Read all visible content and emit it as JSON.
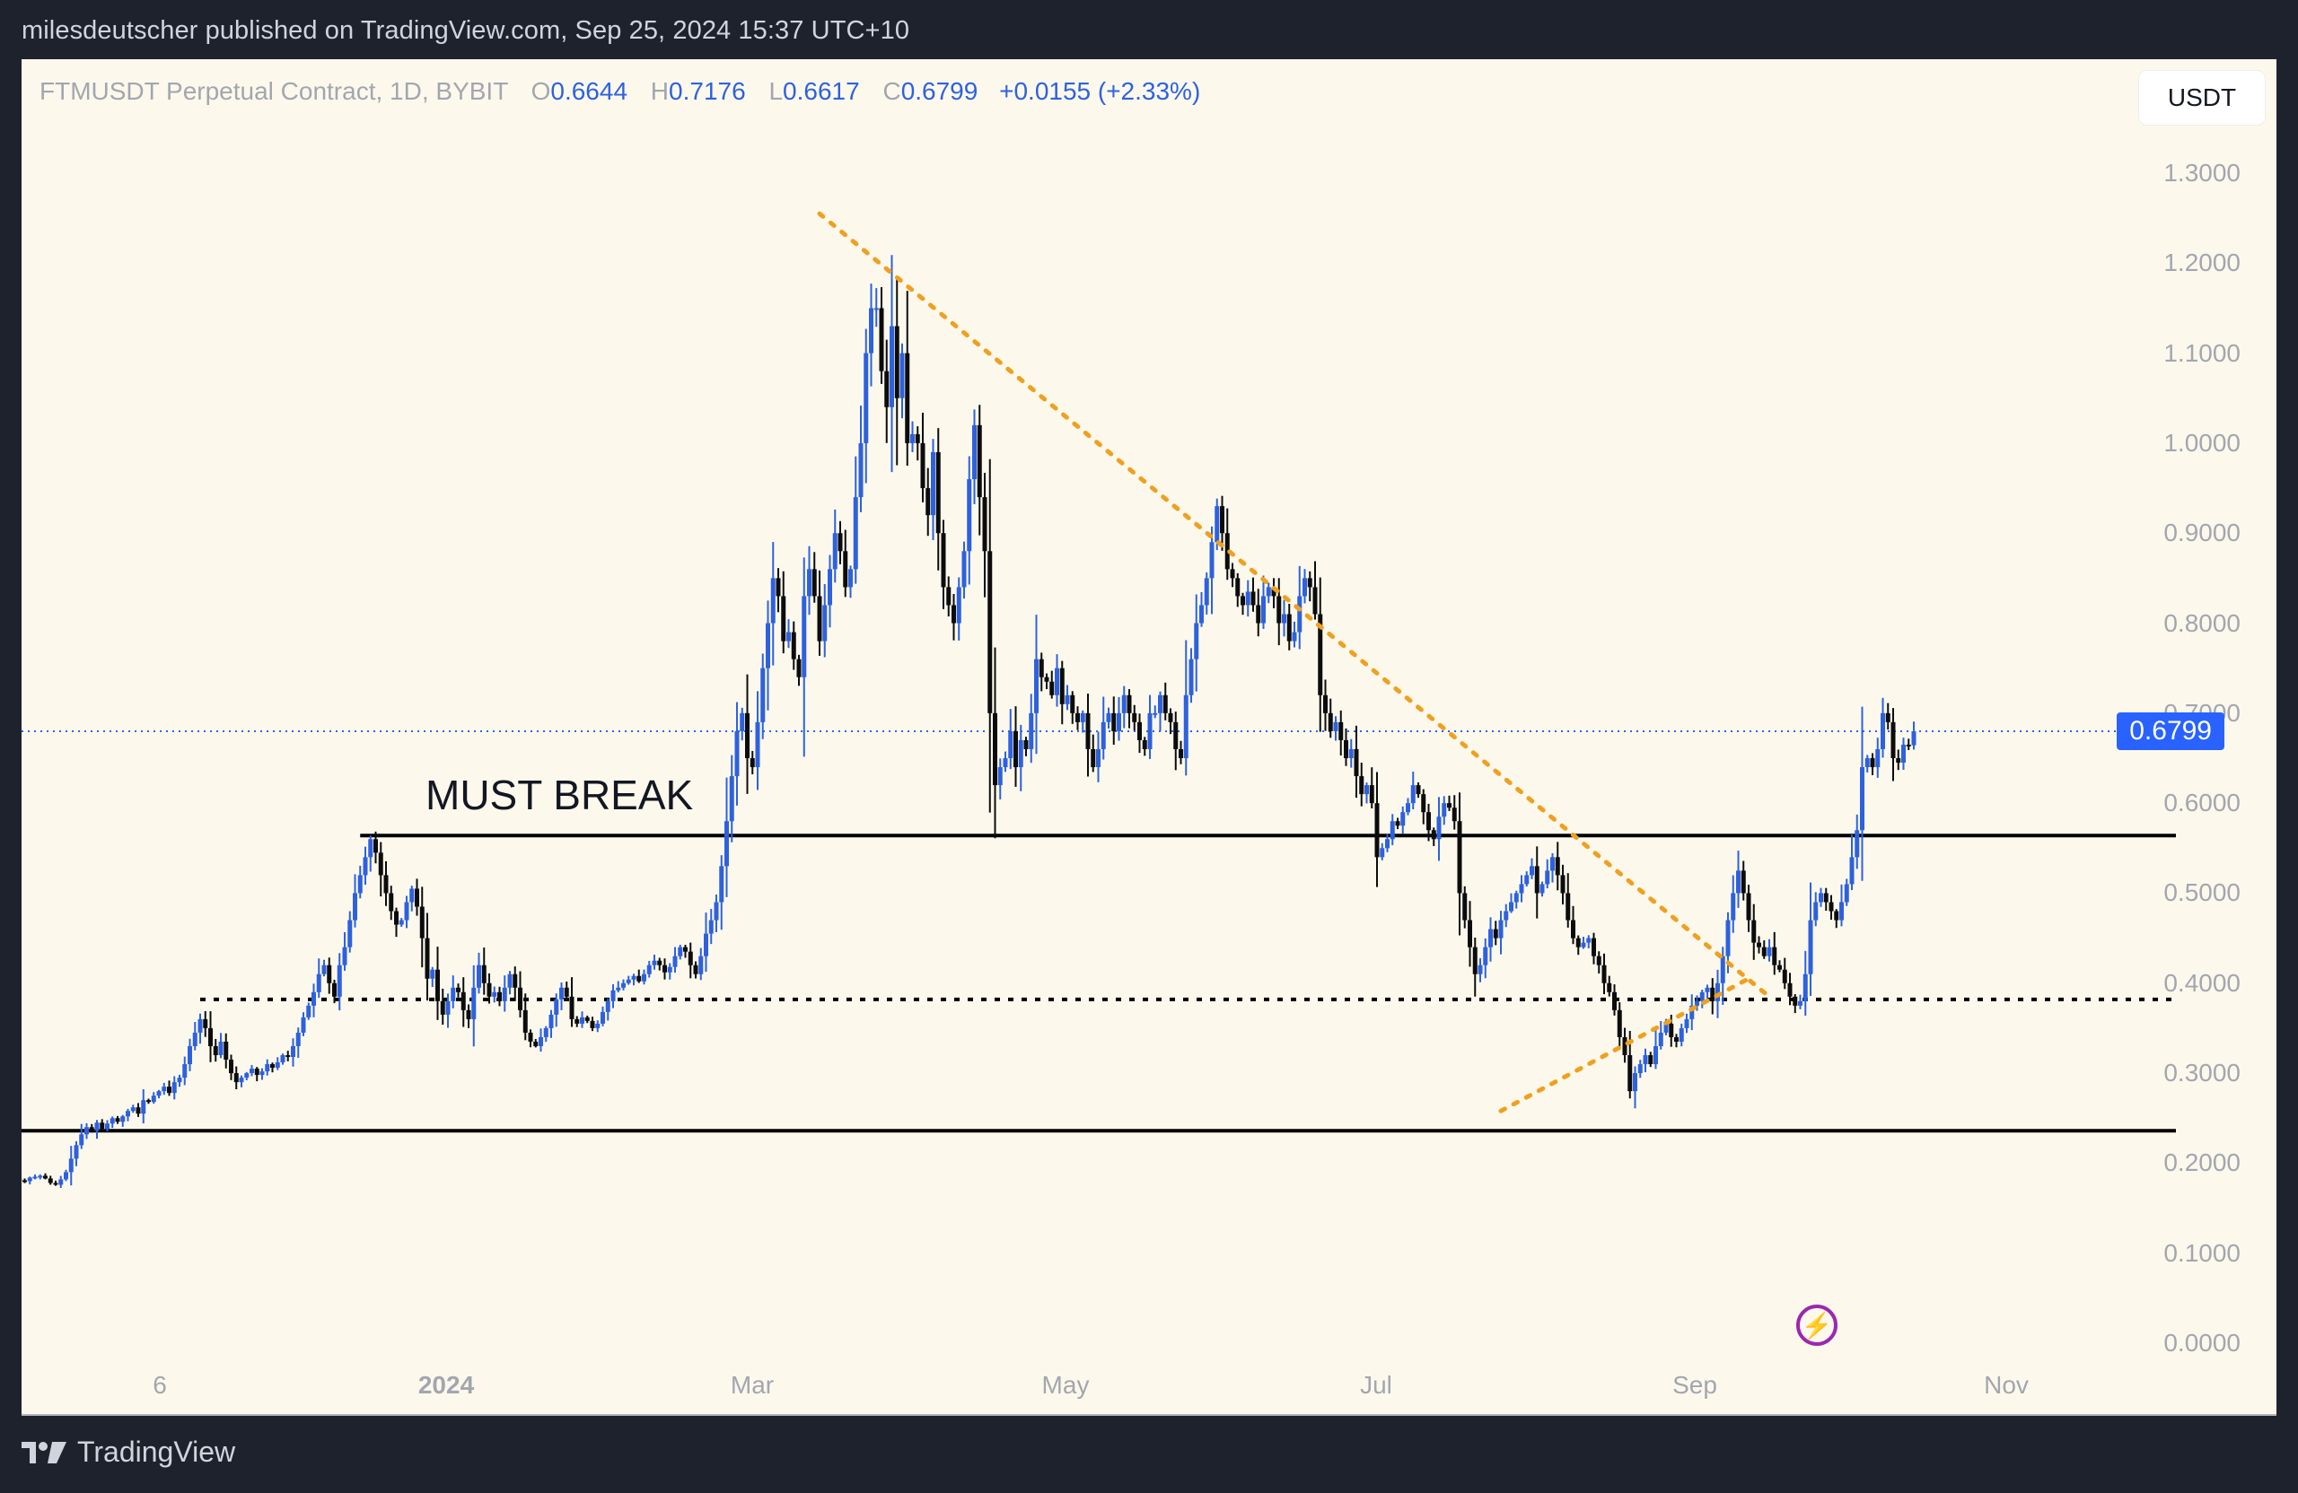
{
  "header": {
    "publisher_line": "milesdeutscher published on TradingView.com, Sep 25, 2024 15:37 UTC+10"
  },
  "legend": {
    "symbol": "FTMUSDT Perpetual Contract, 1D, BYBIT",
    "open_key": "O",
    "open": "0.6644",
    "high_key": "H",
    "high": "0.7176",
    "low_key": "L",
    "low": "0.6617",
    "close_key": "C",
    "close": "0.6799",
    "change": "+0.0155 (+2.33%)"
  },
  "currency_button": "USDT",
  "current_price_label": "0.6799",
  "annotation": "MUST BREAK",
  "footer": {
    "brand": "TradingView"
  },
  "icons": {
    "flash": "⚡"
  },
  "colors": {
    "up": "#2e61de",
    "down": "#0c0c0c",
    "trendline": "#f0a020",
    "price_line": "#2962ff",
    "background": "#fcf9ec"
  },
  "chart_data": {
    "type": "candlestick",
    "title": "FTMUSDT Perpetual Contract, 1D, BYBIT",
    "xlabel": "",
    "ylabel": "USDT",
    "ylim": [
      0,
      1.3
    ],
    "yticks": [
      "1.3000",
      "1.2000",
      "1.1000",
      "1.0000",
      "0.9000",
      "0.8000",
      "0.7000",
      "0.6000",
      "0.5000",
      "0.4000",
      "0.3000",
      "0.2000",
      "0.1000",
      "0.0000"
    ],
    "xticks": [
      {
        "label": "6",
        "x": 154
      },
      {
        "label": "2024",
        "x": 473,
        "bold": true
      },
      {
        "label": "Mar",
        "x": 814
      },
      {
        "label": "May",
        "x": 1163
      },
      {
        "label": "Jul",
        "x": 1509
      },
      {
        "label": "Sep",
        "x": 1864
      },
      {
        "label": "Nov",
        "x": 2211
      }
    ],
    "last_price": 0.6799,
    "grid": false,
    "horizontal_levels": [
      {
        "price": 0.564,
        "style": "solid",
        "x_start_date": "2023-12-28",
        "label": "MUST BREAK"
      },
      {
        "price": 0.382,
        "style": "dotted",
        "x_start_date": "2023-11-27"
      },
      {
        "price": 0.236,
        "style": "solid",
        "x_start_date": "2023-10-22"
      }
    ],
    "trendlines": [
      {
        "from": {
          "date": "2024-03-26",
          "price": 1.255
        },
        "to": {
          "date": "2024-09-26",
          "price": 0.385
        },
        "style": "dotted",
        "color": "#f0a020"
      },
      {
        "from": {
          "date": "2024-08-05",
          "price": 0.258
        },
        "to": {
          "date": "2024-09-22",
          "price": 0.405
        },
        "style": "dotted",
        "color": "#f0a020"
      }
    ],
    "date_range": [
      "2023-10-22",
      "2024-09-25"
    ],
    "closes": [
      0.182,
      0.181,
      0.18,
      0.184,
      0.185,
      0.186,
      0.183,
      0.178,
      0.176,
      0.182,
      0.19,
      0.205,
      0.22,
      0.232,
      0.24,
      0.236,
      0.245,
      0.238,
      0.244,
      0.25,
      0.246,
      0.252,
      0.258,
      0.262,
      0.255,
      0.27,
      0.268,
      0.275,
      0.28,
      0.285,
      0.278,
      0.29,
      0.295,
      0.31,
      0.33,
      0.345,
      0.36,
      0.35,
      0.33,
      0.32,
      0.335,
      0.315,
      0.3,
      0.29,
      0.295,
      0.3,
      0.305,
      0.298,
      0.302,
      0.31,
      0.306,
      0.312,
      0.32,
      0.318,
      0.33,
      0.345,
      0.362,
      0.375,
      0.39,
      0.41,
      0.42,
      0.4,
      0.385,
      0.42,
      0.44,
      0.47,
      0.5,
      0.52,
      0.54,
      0.56,
      0.545,
      0.52,
      0.5,
      0.48,
      0.465,
      0.47,
      0.49,
      0.505,
      0.485,
      0.45,
      0.405,
      0.415,
      0.38,
      0.365,
      0.38,
      0.395,
      0.39,
      0.37,
      0.36,
      0.395,
      0.42,
      0.4,
      0.385,
      0.39,
      0.38,
      0.395,
      0.41,
      0.395,
      0.37,
      0.345,
      0.335,
      0.33,
      0.34,
      0.35,
      0.365,
      0.382,
      0.395,
      0.385,
      0.36,
      0.355,
      0.362,
      0.358,
      0.35,
      0.355,
      0.368,
      0.38,
      0.392,
      0.395,
      0.4,
      0.404,
      0.408,
      0.402,
      0.41,
      0.42,
      0.425,
      0.42,
      0.412,
      0.418,
      0.43,
      0.44,
      0.435,
      0.42,
      0.41,
      0.43,
      0.455,
      0.47,
      0.49,
      0.53,
      0.58,
      0.63,
      0.68,
      0.7,
      0.65,
      0.64,
      0.69,
      0.75,
      0.8,
      0.85,
      0.83,
      0.78,
      0.79,
      0.76,
      0.74,
      0.83,
      0.86,
      0.83,
      0.78,
      0.82,
      0.86,
      0.9,
      0.88,
      0.84,
      0.86,
      0.94,
      1.0,
      1.1,
      1.15,
      1.15,
      1.08,
      1.04,
      1.13,
      1.05,
      1.1,
      1.0,
      1.01,
      1.0,
      0.95,
      0.92,
      0.99,
      0.9,
      0.84,
      0.82,
      0.8,
      0.84,
      0.88,
      0.96,
      1.02,
      0.94,
      0.88,
      0.7,
      0.62,
      0.64,
      0.65,
      0.68,
      0.64,
      0.67,
      0.66,
      0.7,
      0.76,
      0.74,
      0.735,
      0.72,
      0.75,
      0.71,
      0.72,
      0.7,
      0.69,
      0.7,
      0.66,
      0.64,
      0.66,
      0.69,
      0.7,
      0.68,
      0.7,
      0.72,
      0.7,
      0.69,
      0.67,
      0.66,
      0.7,
      0.7,
      0.72,
      0.7,
      0.69,
      0.66,
      0.65,
      0.72,
      0.76,
      0.8,
      0.82,
      0.85,
      0.89,
      0.93,
      0.9,
      0.86,
      0.85,
      0.83,
      0.82,
      0.835,
      0.82,
      0.8,
      0.83,
      0.84,
      0.83,
      0.8,
      0.81,
      0.78,
      0.79,
      0.83,
      0.85,
      0.84,
      0.81,
      0.72,
      0.7,
      0.68,
      0.69,
      0.67,
      0.65,
      0.66,
      0.63,
      0.61,
      0.62,
      0.6,
      0.54,
      0.55,
      0.56,
      0.58,
      0.575,
      0.59,
      0.6,
      0.62,
      0.61,
      0.59,
      0.57,
      0.56,
      0.585,
      0.6,
      0.595,
      0.58,
      0.5,
      0.47,
      0.44,
      0.41,
      0.42,
      0.44,
      0.46,
      0.45,
      0.47,
      0.48,
      0.49,
      0.5,
      0.51,
      0.52,
      0.53,
      0.5,
      0.51,
      0.525,
      0.54,
      0.52,
      0.5,
      0.47,
      0.45,
      0.44,
      0.445,
      0.45,
      0.43,
      0.42,
      0.4,
      0.39,
      0.37,
      0.34,
      0.32,
      0.28,
      0.3,
      0.31,
      0.32,
      0.31,
      0.33,
      0.345,
      0.355,
      0.34,
      0.335,
      0.35,
      0.36,
      0.375,
      0.38,
      0.39,
      0.395,
      0.38,
      0.4,
      0.43,
      0.47,
      0.5,
      0.525,
      0.5,
      0.47,
      0.445,
      0.44,
      0.43,
      0.44,
      0.42,
      0.415,
      0.4,
      0.385,
      0.375,
      0.38,
      0.41,
      0.47,
      0.49,
      0.5,
      0.49,
      0.48,
      0.47,
      0.49,
      0.51,
      0.54,
      0.57,
      0.64,
      0.65,
      0.64,
      0.66,
      0.7,
      0.69,
      0.65,
      0.645,
      0.665,
      0.6644,
      0.6799
    ]
  }
}
